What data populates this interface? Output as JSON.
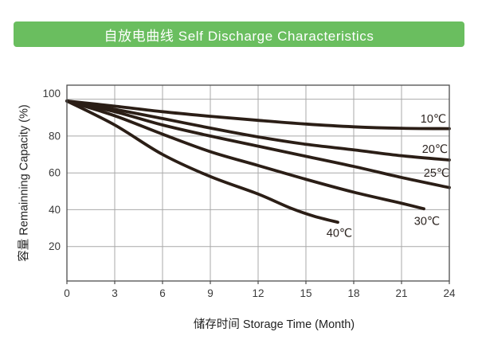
{
  "title_bar": {
    "label": "自放电曲线 Self Discharge Characteristics"
  },
  "colors": {
    "title_bg": "#6abe5f",
    "title_text": "#ffffff",
    "curve": "#2b1e16",
    "grid": "#a9a9a9",
    "frame": "#4d4d4d",
    "tick_text": "#3a3a3a"
  },
  "chart_data": {
    "type": "line",
    "title": "自放电曲线 Self Discharge Characteristics",
    "xlabel": "储存时间 Storage Time (Month)",
    "ylabel": "容量 Remainning Capacity (%)",
    "x_ticks": [
      0,
      3,
      6,
      9,
      12,
      15,
      18,
      21,
      24
    ],
    "y_ticks": [
      20,
      40,
      60,
      80,
      100
    ],
    "xlim": [
      0,
      24
    ],
    "ylim_drawn": [
      1.3,
      107.6
    ],
    "grid": true,
    "legend_position": "labels-inline-near-curve-ends",
    "series": [
      {
        "name": "10℃",
        "label_at": [
          23.0,
          89.5
        ],
        "points": [
          [
            0,
            99
          ],
          [
            3,
            96.2
          ],
          [
            6,
            93.2
          ],
          [
            9,
            90.7
          ],
          [
            12,
            88.5
          ],
          [
            15,
            86.5
          ],
          [
            18,
            85
          ],
          [
            21,
            84.2
          ],
          [
            24,
            84
          ]
        ]
      },
      {
        "name": "20℃",
        "label_at": [
          23.1,
          73
        ],
        "points": [
          [
            0,
            99
          ],
          [
            3,
            94.5
          ],
          [
            6,
            89.5
          ],
          [
            9,
            84.3
          ],
          [
            12,
            79.5
          ],
          [
            15,
            75.5
          ],
          [
            18,
            72.5
          ],
          [
            21,
            69.3
          ],
          [
            24,
            67
          ]
        ]
      },
      {
        "name": "25℃",
        "label_at": [
          23.2,
          60
        ],
        "points": [
          [
            0,
            99
          ],
          [
            3,
            93.2
          ],
          [
            6,
            86
          ],
          [
            9,
            80
          ],
          [
            12,
            74.5
          ],
          [
            15,
            69
          ],
          [
            18,
            63.5
          ],
          [
            21,
            57.5
          ],
          [
            24,
            52
          ]
        ]
      },
      {
        "name": "30℃",
        "label_at": [
          22.6,
          34
        ],
        "points": [
          [
            0,
            99
          ],
          [
            3,
            91
          ],
          [
            6,
            81
          ],
          [
            9,
            71.5
          ],
          [
            12,
            64
          ],
          [
            15,
            56.5
          ],
          [
            18,
            49.5
          ],
          [
            21,
            43.5
          ],
          [
            22.4,
            40.5
          ]
        ]
      },
      {
        "name": "40℃",
        "label_at": [
          17.1,
          27.5
        ],
        "points": [
          [
            0,
            99
          ],
          [
            3,
            86
          ],
          [
            6,
            70
          ],
          [
            9,
            58
          ],
          [
            12,
            48.5
          ],
          [
            14,
            41
          ],
          [
            15.5,
            36.5
          ],
          [
            17,
            33.2
          ]
        ]
      }
    ]
  }
}
